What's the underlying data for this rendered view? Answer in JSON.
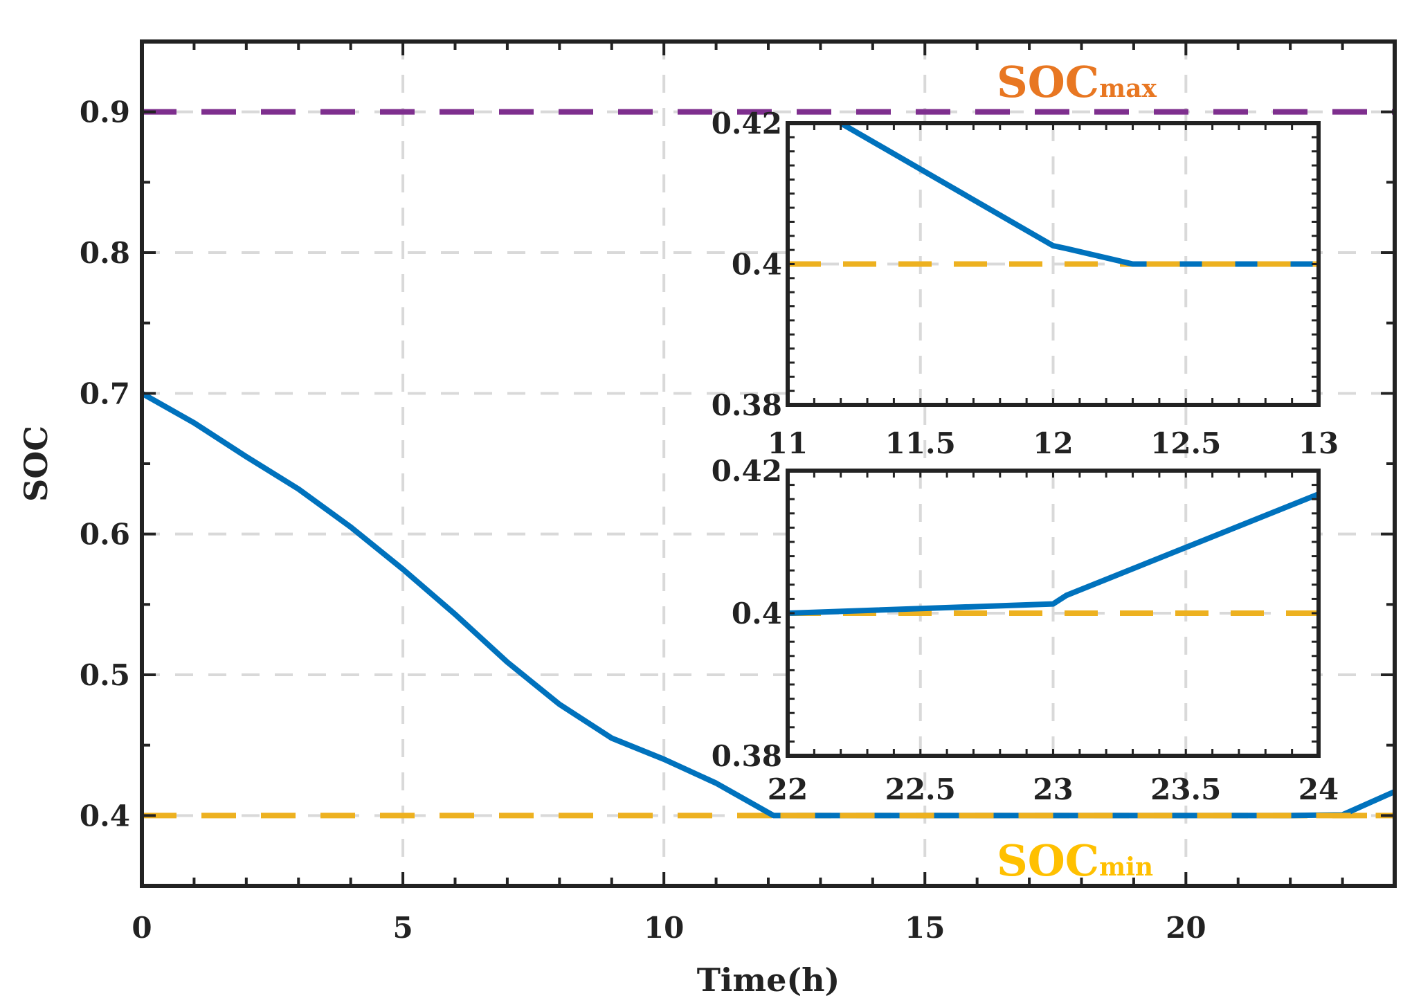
{
  "chart_data": {
    "type": "line",
    "xlabel": "Time(h)",
    "ylabel": "SOC",
    "xlim": [
      0,
      24
    ],
    "ylim": [
      0.35,
      0.95
    ],
    "xticks": [
      "0",
      "5",
      "10",
      "15",
      "20"
    ],
    "yticks": [
      "0.4",
      "0.5",
      "0.6",
      "0.7",
      "0.8",
      "0.9"
    ],
    "xtick_values": [
      0,
      5,
      10,
      15,
      20
    ],
    "ytick_values": [
      0.4,
      0.5,
      0.6,
      0.7,
      0.8,
      0.9
    ],
    "grid": true,
    "series": [
      {
        "name": "SOC",
        "color": "#0072BD",
        "x": [
          0,
          1,
          2,
          3,
          4,
          5,
          6,
          7,
          8,
          9,
          10,
          11,
          12.1,
          13,
          14,
          15,
          16,
          17,
          18,
          19,
          20,
          21,
          22,
          23,
          24
        ],
        "y": [
          0.7,
          0.679,
          0.655,
          0.632,
          0.605,
          0.575,
          0.543,
          0.509,
          0.479,
          0.455,
          0.44,
          0.423,
          0.4,
          0.4,
          0.4,
          0.4,
          0.4,
          0.4,
          0.4,
          0.4,
          0.4,
          0.4,
          0.4,
          0.4005,
          0.417
        ]
      },
      {
        "name": "SOC max limit",
        "color": "#7E2F8E",
        "style": "dashed",
        "x": [
          0,
          24
        ],
        "y": [
          0.9,
          0.9
        ]
      },
      {
        "name": "SOC min limit",
        "color": "#EDB120",
        "style": "dashed",
        "x": [
          0,
          24
        ],
        "y": [
          0.4,
          0.4
        ]
      }
    ],
    "annotations": [
      {
        "main": "SOC",
        "sub": "max",
        "color": "#E87722",
        "x": 17.3,
        "y": 0.92
      },
      {
        "main": "SOC",
        "sub": "min",
        "color": "#FFC000",
        "x": 17.3,
        "y": 0.368
      }
    ],
    "insets": [
      {
        "xlim": [
          11,
          13
        ],
        "ylim": [
          0.38,
          0.42
        ],
        "xticks": [
          "11",
          "11.5",
          "12",
          "12.5",
          "13"
        ],
        "yticks": [
          "0.38",
          "0.4",
          "0.42"
        ],
        "xtick_values": [
          11,
          11.5,
          12,
          12.5,
          13
        ],
        "ytick_values": [
          0.38,
          0.4,
          0.42
        ],
        "soc": {
          "x": [
            11.2,
            12.0,
            12.05,
            12.3,
            13.0
          ],
          "y": [
            0.42,
            0.4026,
            0.4022,
            0.4,
            0.4
          ]
        },
        "limit": 0.4
      },
      {
        "xlim": [
          22,
          24
        ],
        "ylim": [
          0.38,
          0.42
        ],
        "xticks": [
          "22",
          "22.5",
          "23",
          "23.5",
          "24"
        ],
        "yticks": [
          "0.38",
          "0.4",
          "0.42"
        ],
        "xtick_values": [
          22,
          22.5,
          23,
          23.5,
          24
        ],
        "ytick_values": [
          0.38,
          0.4,
          0.42
        ],
        "soc": {
          "x": [
            22.0,
            23.0,
            23.05,
            24.0
          ],
          "y": [
            0.4,
            0.4013,
            0.4025,
            0.4167
          ]
        },
        "limit": 0.4
      }
    ]
  }
}
